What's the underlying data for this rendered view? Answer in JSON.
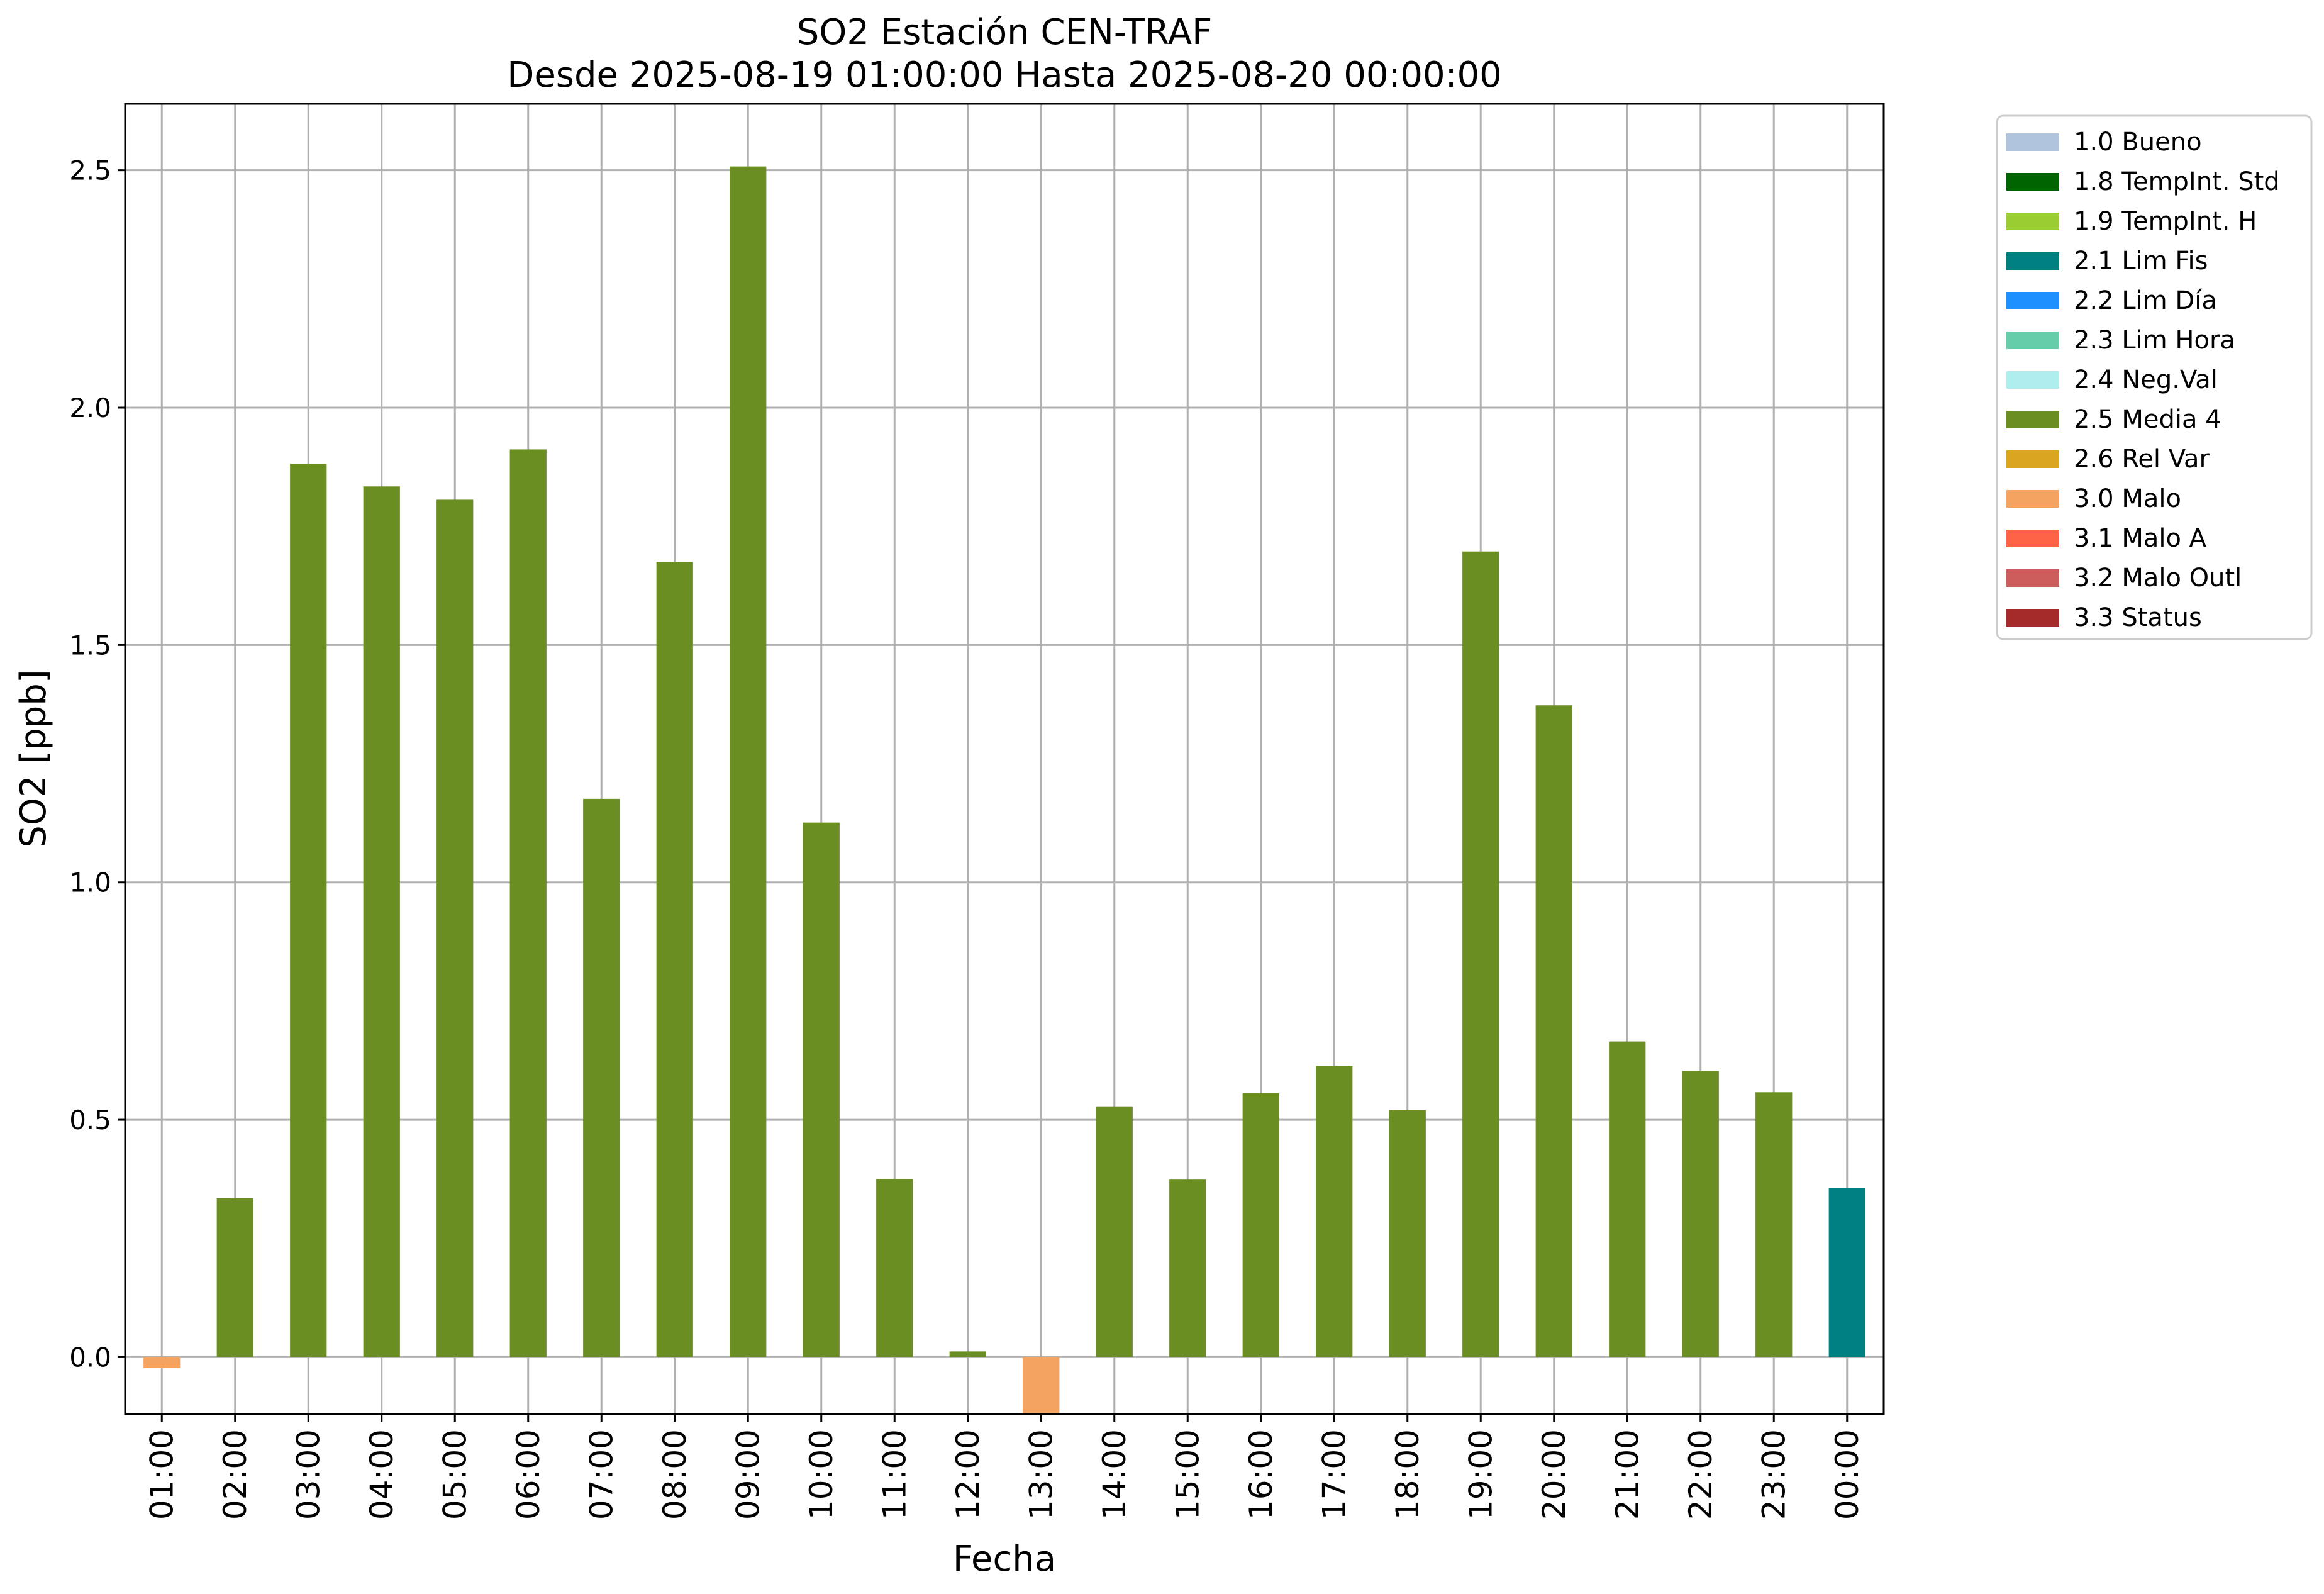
{
  "chart_data": {
    "type": "bar",
    "title": "SO2 Estación CEN-TRAF",
    "subtitle": "Desde 2025-08-19 01:00:00 Hasta 2025-08-20 00:00:00",
    "xlabel": "Fecha",
    "ylabel": "SO2 [ppb]",
    "ylim": [
      -0.12,
      2.64
    ],
    "yticks": [
      0.0,
      0.5,
      1.0,
      1.5,
      2.0,
      2.5
    ],
    "ytick_labels": [
      "0.0",
      "0.5",
      "1.0",
      "1.5",
      "2.0",
      "2.5"
    ],
    "grid": true,
    "legend_position": "outside-top-right",
    "categories": [
      "01:00",
      "02:00",
      "03:00",
      "04:00",
      "05:00",
      "06:00",
      "07:00",
      "08:00",
      "09:00",
      "10:00",
      "11:00",
      "12:00",
      "13:00",
      "14:00",
      "15:00",
      "16:00",
      "17:00",
      "18:00",
      "19:00",
      "20:00",
      "21:00",
      "22:00",
      "23:00",
      "00:00"
    ],
    "values": [
      -0.023,
      0.335,
      1.882,
      1.834,
      1.806,
      1.912,
      1.176,
      1.675,
      2.508,
      1.126,
      0.375,
      0.012,
      -0.13,
      0.527,
      0.374,
      0.556,
      0.614,
      0.52,
      1.697,
      1.373,
      0.665,
      0.603,
      0.558,
      0.357
    ],
    "flags": [
      "3.0 Malo",
      "2.5 Media 4",
      "2.5 Media 4",
      "2.5 Media 4",
      "2.5 Media 4",
      "2.5 Media 4",
      "2.5 Media 4",
      "2.5 Media 4",
      "2.5 Media 4",
      "2.5 Media 4",
      "2.5 Media 4",
      "2.5 Media 4",
      "3.0 Malo",
      "2.5 Media 4",
      "2.5 Media 4",
      "2.5 Media 4",
      "2.5 Media 4",
      "2.5 Media 4",
      "2.5 Media 4",
      "2.5 Media 4",
      "2.5 Media 4",
      "2.5 Media 4",
      "2.5 Media 4",
      "2.1 Lim Fis"
    ],
    "legend": [
      {
        "label": "1.0 Bueno",
        "color": "#b0c4de"
      },
      {
        "label": "1.8 TempInt. Std",
        "color": "#006400"
      },
      {
        "label": "1.9 TempInt. H",
        "color": "#9acd32"
      },
      {
        "label": "2.1 Lim Fis",
        "color": "#008080"
      },
      {
        "label": "2.2 Lim Día",
        "color": "#1e90ff"
      },
      {
        "label": "2.3 Lim Hora",
        "color": "#66cdaa"
      },
      {
        "label": "2.4 Neg.Val",
        "color": "#afeeee"
      },
      {
        "label": "2.5 Media 4",
        "color": "#6b8e23"
      },
      {
        "label": "2.6 Rel Var",
        "color": "#daa520"
      },
      {
        "label": "3.0 Malo",
        "color": "#f4a460"
      },
      {
        "label": "3.1 Malo A",
        "color": "#ff6347"
      },
      {
        "label": "3.2 Malo Outl",
        "color": "#cd5c5c"
      },
      {
        "label": "3.3 Status",
        "color": "#a52a2a"
      }
    ]
  }
}
